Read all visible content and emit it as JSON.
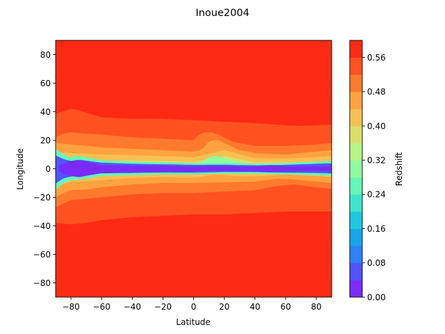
{
  "chart_data": {
    "type": "heatmap",
    "subtype": "filled-contour",
    "title": "Inoue2004",
    "xlabel": "Latitude",
    "ylabel": "Longitude",
    "xlim": [
      -90,
      90
    ],
    "ylim": [
      -90,
      90
    ],
    "x_ticks": [
      -80,
      -60,
      -40,
      -20,
      0,
      20,
      40,
      60,
      80
    ],
    "y_ticks": [
      -80,
      -60,
      -40,
      -20,
      0,
      20,
      40,
      60,
      80
    ],
    "x_tick_labels": [
      "−80",
      "−60",
      "−40",
      "−20",
      "0",
      "20",
      "40",
      "60",
      "80"
    ],
    "y_tick_labels": [
      "−80",
      "−60",
      "−40",
      "−20",
      "0",
      "20",
      "40",
      "60",
      "80"
    ],
    "colorbar": {
      "label": "Redshift",
      "range": [
        0.0,
        0.6
      ],
      "levels": [
        0.0,
        0.04,
        0.08,
        0.12,
        0.16,
        0.2,
        0.24,
        0.28,
        0.32,
        0.36,
        0.4,
        0.44,
        0.48,
        0.52,
        0.56,
        0.6
      ],
      "ticks": [
        0.0,
        0.08,
        0.16,
        0.24,
        0.32,
        0.4,
        0.48,
        0.56
      ],
      "tick_labels": [
        "0.00",
        "0.08",
        "0.16",
        "0.24",
        "0.32",
        "0.40",
        "0.48",
        "0.56"
      ],
      "colormap": "rainbow",
      "colors": [
        "#7a2bf9",
        "#5353fd",
        "#2e81f6",
        "#16a6eb",
        "#1ec9de",
        "#3ee5ce",
        "#64f8b8",
        "#8ffd9f",
        "#b7f585",
        "#d9e16b",
        "#f6c053",
        "#ffa23f",
        "#ff7a2d",
        "#ff5220",
        "#ff2a14"
      ]
    },
    "contours": {
      "level_0.56": {
        "upper_x": [
          -90,
          -80,
          -75,
          -60,
          -40,
          -20,
          0,
          20,
          40,
          60,
          70,
          80,
          90
        ],
        "upper_y": [
          38.5,
          42,
          41,
          36,
          35,
          35,
          34,
          33,
          32,
          30.5,
          30,
          30.5,
          31
        ],
        "lower_x": [
          -90,
          -80,
          -70,
          -60,
          -40,
          -20,
          0,
          20,
          40,
          60,
          70,
          80,
          90
        ],
        "lower_y": [
          -38,
          -39,
          -38,
          -36,
          -34,
          -33,
          -32,
          -32,
          -31,
          -30,
          -30,
          -30,
          -30
        ]
      },
      "level_0.52": {
        "upper_x": [
          -90,
          -85,
          -80,
          -75,
          -60,
          -40,
          -20,
          0,
          3,
          7,
          12,
          17,
          25,
          40,
          60,
          80,
          90
        ],
        "upper_y": [
          22,
          24.5,
          25.5,
          25,
          24,
          22,
          21,
          20,
          23.5,
          25.5,
          25.5,
          23.5,
          19,
          16,
          16,
          17,
          18
        ],
        "lower_x": [
          -90,
          -85,
          -80,
          -70,
          -60,
          -40,
          -20,
          0,
          20,
          40,
          55,
          65,
          80,
          90
        ],
        "lower_y": [
          -27,
          -24.5,
          -22,
          -21,
          -20,
          -18,
          -17,
          -17,
          -16,
          -15,
          -12,
          -11,
          -13,
          -14
        ]
      },
      "level_0.48": {
        "upper_x": [
          -90,
          -85,
          -80,
          -75,
          -60,
          -40,
          -20,
          0,
          5,
          10,
          15,
          20,
          30,
          40,
          60,
          80,
          90
        ],
        "upper_y": [
          18,
          17.5,
          17,
          16.5,
          15,
          14,
          13,
          12,
          13,
          19,
          20.5,
          18,
          13,
          11,
          10,
          12,
          13
        ],
        "lower_x": [
          -90,
          -85,
          -80,
          -70,
          -60,
          -40,
          -20,
          0,
          20,
          40,
          55,
          65,
          80,
          90
        ],
        "lower_y": [
          -20,
          -17,
          -15,
          -14.5,
          -13,
          -11,
          -10,
          -10,
          -9.5,
          -9,
          -7,
          -7.5,
          -9,
          -10
        ]
      },
      "level_0.24": {
        "upper_x": [
          -90,
          -85,
          -80,
          -75,
          -60,
          -40,
          -20,
          0,
          20,
          40,
          60,
          80,
          90
        ],
        "upper_y": [
          14,
          10,
          8,
          9,
          6,
          5,
          4.5,
          4,
          4,
          3.5,
          4,
          5,
          5.5
        ],
        "lower_x": [
          -90,
          -85,
          -80,
          -70,
          -60,
          -40,
          -20,
          0,
          20,
          40,
          60,
          80,
          90
        ],
        "lower_y": [
          -15,
          -10,
          -8,
          -7,
          -5,
          -4.5,
          -4,
          -4,
          -3.5,
          -3.5,
          -4,
          -4.5,
          -5
        ]
      },
      "level_0.04": {
        "upper_x": [
          -88,
          -85,
          -80,
          -75,
          -70,
          -60,
          -40,
          -20,
          0,
          20,
          40,
          50,
          60,
          80,
          90
        ],
        "upper_y": [
          2,
          3.5,
          5,
          6,
          5,
          2.5,
          2,
          2,
          1.5,
          1.5,
          1.5,
          2.5,
          1.5,
          1.5,
          1.5
        ],
        "lower_x": [
          -88,
          -85,
          -80,
          -75,
          -70,
          -60,
          -40,
          -20,
          0,
          20,
          40,
          50,
          60,
          80,
          90
        ],
        "lower_y": [
          -2,
          -3.5,
          -5,
          -6,
          -5,
          -3,
          -2.5,
          -2,
          -2,
          -1.5,
          -1.5,
          -2.5,
          -1.5,
          -1.5,
          -1.5
        ]
      }
    }
  }
}
